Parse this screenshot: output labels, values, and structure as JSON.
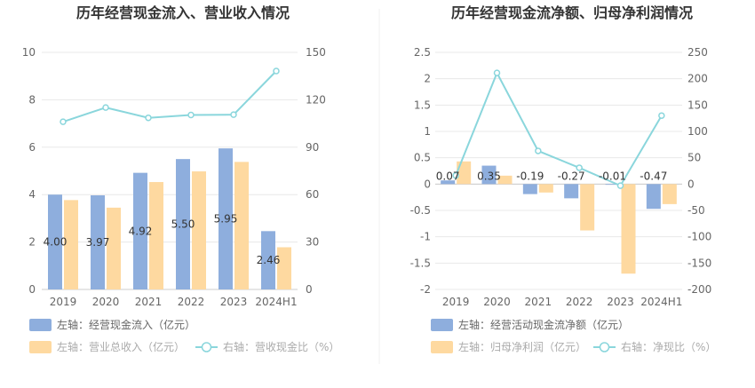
{
  "chart_data": [
    {
      "type": "bar",
      "title": "历年经营现金流入、营业收入情况",
      "categories": [
        "2019",
        "2020",
        "2021",
        "2022",
        "2023",
        "2024H1"
      ],
      "left_axis": {
        "min": 0,
        "max": 10,
        "ticks": [
          "0",
          "2",
          "4",
          "6",
          "8",
          "10"
        ]
      },
      "right_axis": {
        "min": 0,
        "max": 150,
        "ticks": [
          "0",
          "30",
          "60",
          "90",
          "120",
          "150"
        ]
      },
      "series": [
        {
          "name": "左轴：经营现金流入（亿元）",
          "axis": "left",
          "kind": "bar",
          "color": "#8eaedd",
          "values": [
            4.0,
            3.97,
            4.92,
            5.5,
            5.95,
            2.46
          ],
          "labels": [
            "4.00",
            "3.97",
            "4.92",
            "5.50",
            "5.95",
            "2.46"
          ]
        },
        {
          "name": "左轴：营业总收入（亿元）",
          "axis": "left",
          "kind": "bar",
          "color": "#fed9a0",
          "values": [
            3.77,
            3.45,
            4.53,
            4.98,
            5.38,
            1.78
          ]
        },
        {
          "name": "右轴：营收现金比（%）",
          "axis": "right",
          "kind": "line",
          "color": "#8ad6dc",
          "values": [
            106.1,
            115.1,
            108.6,
            110.4,
            110.6,
            138.2
          ]
        }
      ],
      "legend_placement": "bottom-left",
      "grid": true
    },
    {
      "type": "bar",
      "title": "历年经营现金流净额、归母净利润情况",
      "categories": [
        "2019",
        "2020",
        "2021",
        "2022",
        "2023",
        "2024H1"
      ],
      "left_axis": {
        "min": -2,
        "max": 2.5,
        "ticks": [
          "-2",
          "-1.5",
          "-1",
          "-0.5",
          "0",
          "0.5",
          "1",
          "1.5",
          "2",
          "2.5"
        ]
      },
      "right_axis": {
        "min": -200,
        "max": 250,
        "ticks": [
          "-200",
          "-150",
          "-100",
          "-50",
          "0",
          "50",
          "100",
          "150",
          "200",
          "250"
        ]
      },
      "series": [
        {
          "name": "左轴：经营活动现金流净额（亿元）",
          "axis": "left",
          "kind": "bar",
          "color": "#8eaedd",
          "values": [
            0.07,
            0.35,
            -0.19,
            -0.27,
            -0.01,
            -0.47
          ],
          "labels": [
            "0.07",
            "0.35",
            "-0.19",
            "-0.27",
            "-0.01",
            "-0.47"
          ]
        },
        {
          "name": "左轴：归母净利润（亿元）",
          "axis": "left",
          "kind": "bar",
          "color": "#fed9a0",
          "values": [
            0.43,
            0.16,
            -0.16,
            -0.88,
            -1.7,
            -0.38
          ]
        },
        {
          "name": "右轴：净现比（%）",
          "axis": "right",
          "kind": "line",
          "color": "#8ad6dc",
          "values": [
            16.3,
            211,
            63,
            31,
            -3,
            130
          ]
        }
      ],
      "legend_placement": "bottom-left",
      "grid": true
    }
  ]
}
